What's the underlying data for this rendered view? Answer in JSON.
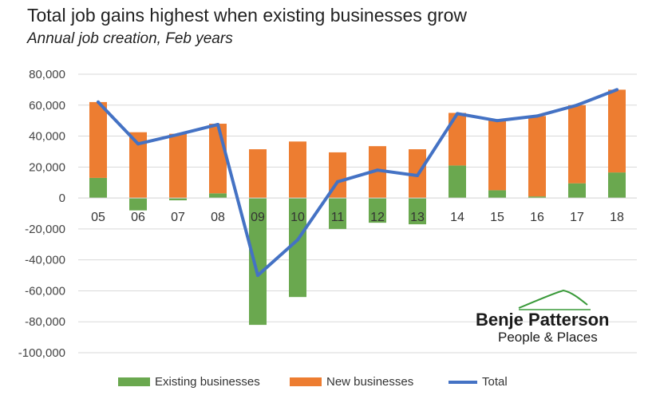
{
  "chart_data": {
    "type": "bar",
    "title": "Total job gains highest when existing businesses grow",
    "subtitle": "Annual job creation, Feb years",
    "categories": [
      "05",
      "06",
      "07",
      "08",
      "09",
      "10",
      "11",
      "12",
      "13",
      "14",
      "15",
      "16",
      "17",
      "18"
    ],
    "ylim": [
      -100000,
      80000
    ],
    "yticks": [
      "80,000",
      "60,000",
      "40,000",
      "20,000",
      "0",
      "-20,000",
      "-40,000",
      "-60,000",
      "-80,000",
      "-100,000"
    ],
    "ytick_values": [
      80000,
      60000,
      40000,
      20000,
      0,
      -20000,
      -40000,
      -60000,
      -80000,
      -100000
    ],
    "grid": true,
    "legend_position": "bottom",
    "series": [
      {
        "name": "Existing businesses",
        "kind": "bar",
        "color": "#6AA84F",
        "values": [
          13000,
          -8000,
          -1500,
          3000,
          -82000,
          -64000,
          -20000,
          -16000,
          -17000,
          21000,
          5000,
          1000,
          9500,
          16500
        ]
      },
      {
        "name": "New businesses",
        "kind": "bar",
        "color": "#ED7D31",
        "values": [
          49000,
          42500,
          41500,
          45000,
          31500,
          36500,
          29500,
          33500,
          31500,
          34000,
          45000,
          52000,
          50500,
          53500
        ]
      },
      {
        "name": "Total",
        "kind": "line",
        "color": "#4472C4",
        "values": [
          62000,
          35000,
          41000,
          47500,
          -50000,
          -27000,
          10500,
          18000,
          14500,
          54500,
          50000,
          53000,
          60000,
          70000
        ]
      }
    ]
  },
  "logo": {
    "name": "Benje Patterson",
    "tagline": "People & Places"
  }
}
